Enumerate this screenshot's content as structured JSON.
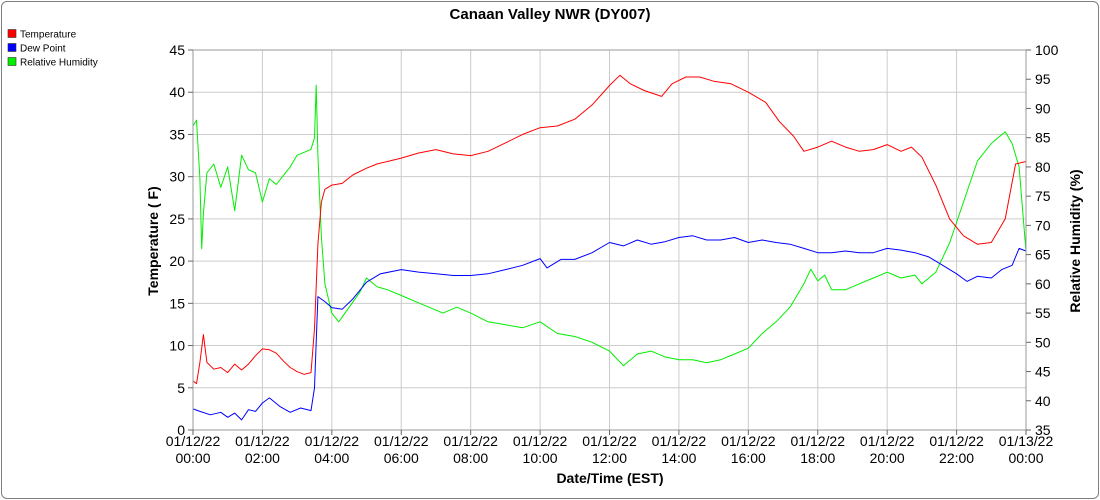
{
  "chart_data": {
    "type": "line",
    "title": "Canaan Valley NWR (DY007)",
    "xlabel": "Date/Time (EST)",
    "ylabel": "Temperature ( F)",
    "y2label": "Relative Humidity (%)",
    "ylim": [
      0,
      45
    ],
    "y2lim": [
      35,
      100
    ],
    "xlim_hours": [
      0,
      24
    ],
    "y_ticks": [
      "0",
      "5",
      "10",
      "15",
      "20",
      "25",
      "30",
      "35",
      "40",
      "45"
    ],
    "y2_ticks": [
      "35",
      "40",
      "45",
      "50",
      "55",
      "60",
      "65",
      "70",
      "75",
      "80",
      "85",
      "90",
      "95",
      "100"
    ],
    "x_ticks": [
      {
        "hour": 0,
        "date": "01/12/22",
        "time": "00:00"
      },
      {
        "hour": 2,
        "date": "01/12/22",
        "time": "02:00"
      },
      {
        "hour": 4,
        "date": "01/12/22",
        "time": "04:00"
      },
      {
        "hour": 6,
        "date": "01/12/22",
        "time": "06:00"
      },
      {
        "hour": 8,
        "date": "01/12/22",
        "time": "08:00"
      },
      {
        "hour": 10,
        "date": "01/12/22",
        "time": "10:00"
      },
      {
        "hour": 12,
        "date": "01/12/22",
        "time": "12:00"
      },
      {
        "hour": 14,
        "date": "01/12/22",
        "time": "14:00"
      },
      {
        "hour": 16,
        "date": "01/12/22",
        "time": "16:00"
      },
      {
        "hour": 18,
        "date": "01/12/22",
        "time": "18:00"
      },
      {
        "hour": 20,
        "date": "01/12/22",
        "time": "20:00"
      },
      {
        "hour": 22,
        "date": "01/12/22",
        "time": "22:00"
      },
      {
        "hour": 24,
        "date": "01/13/22",
        "time": "00:00"
      }
    ],
    "grid": true,
    "legend_position": "top-left",
    "series": [
      {
        "name": "Temperature",
        "color": "#ff0000",
        "axis": "left",
        "points": [
          [
            0,
            5.8
          ],
          [
            0.1,
            5.5
          ],
          [
            0.2,
            8
          ],
          [
            0.3,
            11.3
          ],
          [
            0.4,
            8
          ],
          [
            0.6,
            7.2
          ],
          [
            0.8,
            7.4
          ],
          [
            1.0,
            6.8
          ],
          [
            1.2,
            7.8
          ],
          [
            1.4,
            7.1
          ],
          [
            1.6,
            7.8
          ],
          [
            1.8,
            8.8
          ],
          [
            2.0,
            9.6
          ],
          [
            2.2,
            9.5
          ],
          [
            2.4,
            9.1
          ],
          [
            2.6,
            8.2
          ],
          [
            2.8,
            7.4
          ],
          [
            3.0,
            6.9
          ],
          [
            3.2,
            6.6
          ],
          [
            3.4,
            6.8
          ],
          [
            3.5,
            12
          ],
          [
            3.6,
            22
          ],
          [
            3.7,
            27
          ],
          [
            3.8,
            28.5
          ],
          [
            4.0,
            29
          ],
          [
            4.3,
            29.2
          ],
          [
            4.6,
            30.2
          ],
          [
            5.0,
            31
          ],
          [
            5.3,
            31.5
          ],
          [
            5.6,
            31.8
          ],
          [
            6.0,
            32.2
          ],
          [
            6.5,
            32.8
          ],
          [
            7.0,
            33.2
          ],
          [
            7.5,
            32.7
          ],
          [
            8.0,
            32.5
          ],
          [
            8.5,
            33
          ],
          [
            9.0,
            34
          ],
          [
            9.5,
            35
          ],
          [
            10.0,
            35.8
          ],
          [
            10.5,
            36
          ],
          [
            11.0,
            36.8
          ],
          [
            11.5,
            38.5
          ],
          [
            12.0,
            40.8
          ],
          [
            12.3,
            42
          ],
          [
            12.6,
            41
          ],
          [
            13.0,
            40.2
          ],
          [
            13.5,
            39.5
          ],
          [
            13.8,
            41
          ],
          [
            14.2,
            41.8
          ],
          [
            14.6,
            41.8
          ],
          [
            15.0,
            41.3
          ],
          [
            15.5,
            41
          ],
          [
            16.0,
            40
          ],
          [
            16.5,
            38.8
          ],
          [
            16.9,
            36.5
          ],
          [
            17.3,
            34.8
          ],
          [
            17.6,
            33
          ],
          [
            18.0,
            33.5
          ],
          [
            18.4,
            34.2
          ],
          [
            18.8,
            33.5
          ],
          [
            19.2,
            33
          ],
          [
            19.6,
            33.2
          ],
          [
            20.0,
            33.8
          ],
          [
            20.4,
            33
          ],
          [
            20.7,
            33.5
          ],
          [
            21.0,
            32.3
          ],
          [
            21.4,
            29
          ],
          [
            21.8,
            25
          ],
          [
            22.2,
            23
          ],
          [
            22.6,
            22
          ],
          [
            23.0,
            22.2
          ],
          [
            23.4,
            25
          ],
          [
            23.7,
            31.5
          ],
          [
            24.0,
            31.8
          ]
        ]
      },
      {
        "name": "Dew Point",
        "color": "#0000ff",
        "axis": "left",
        "points": [
          [
            0,
            2.5
          ],
          [
            0.2,
            2.2
          ],
          [
            0.5,
            1.8
          ],
          [
            0.8,
            2.1
          ],
          [
            1.0,
            1.5
          ],
          [
            1.2,
            2
          ],
          [
            1.4,
            1.2
          ],
          [
            1.6,
            2.4
          ],
          [
            1.8,
            2.2
          ],
          [
            2.0,
            3.2
          ],
          [
            2.2,
            3.8
          ],
          [
            2.5,
            2.8
          ],
          [
            2.8,
            2.1
          ],
          [
            3.1,
            2.6
          ],
          [
            3.4,
            2.3
          ],
          [
            3.5,
            5
          ],
          [
            3.6,
            15.8
          ],
          [
            3.8,
            15.2
          ],
          [
            4.0,
            14.5
          ],
          [
            4.3,
            14.3
          ],
          [
            4.6,
            15.5
          ],
          [
            5.0,
            17.5
          ],
          [
            5.4,
            18.5
          ],
          [
            6.0,
            19
          ],
          [
            6.5,
            18.7
          ],
          [
            7.0,
            18.5
          ],
          [
            7.5,
            18.3
          ],
          [
            8.0,
            18.3
          ],
          [
            8.5,
            18.5
          ],
          [
            9.0,
            19
          ],
          [
            9.5,
            19.5
          ],
          [
            10.0,
            20.3
          ],
          [
            10.2,
            19.2
          ],
          [
            10.6,
            20.2
          ],
          [
            11.0,
            20.2
          ],
          [
            11.5,
            21
          ],
          [
            12.0,
            22.2
          ],
          [
            12.4,
            21.8
          ],
          [
            12.8,
            22.5
          ],
          [
            13.2,
            22
          ],
          [
            13.6,
            22.3
          ],
          [
            14.0,
            22.8
          ],
          [
            14.4,
            23
          ],
          [
            14.8,
            22.5
          ],
          [
            15.2,
            22.5
          ],
          [
            15.6,
            22.8
          ],
          [
            16.0,
            22.2
          ],
          [
            16.4,
            22.5
          ],
          [
            16.8,
            22.2
          ],
          [
            17.2,
            22
          ],
          [
            17.6,
            21.5
          ],
          [
            18.0,
            21
          ],
          [
            18.4,
            21
          ],
          [
            18.8,
            21.2
          ],
          [
            19.2,
            21
          ],
          [
            19.6,
            21
          ],
          [
            20.0,
            21.5
          ],
          [
            20.4,
            21.3
          ],
          [
            20.8,
            21
          ],
          [
            21.2,
            20.5
          ],
          [
            21.6,
            19.5
          ],
          [
            22.0,
            18.5
          ],
          [
            22.3,
            17.6
          ],
          [
            22.6,
            18.2
          ],
          [
            23.0,
            18
          ],
          [
            23.3,
            19
          ],
          [
            23.6,
            19.5
          ],
          [
            23.8,
            21.5
          ],
          [
            24.0,
            21.2
          ]
        ]
      },
      {
        "name": "Relative Humidity",
        "color": "#00ee00",
        "axis": "right",
        "points": [
          [
            0,
            87
          ],
          [
            0.1,
            88
          ],
          [
            0.2,
            78
          ],
          [
            0.25,
            66
          ],
          [
            0.3,
            72
          ],
          [
            0.4,
            79
          ],
          [
            0.6,
            80.5
          ],
          [
            0.8,
            76.5
          ],
          [
            1.0,
            80
          ],
          [
            1.2,
            72.5
          ],
          [
            1.4,
            82
          ],
          [
            1.6,
            79.5
          ],
          [
            1.8,
            79
          ],
          [
            2.0,
            74
          ],
          [
            2.2,
            78
          ],
          [
            2.4,
            77
          ],
          [
            2.6,
            78.5
          ],
          [
            2.8,
            80
          ],
          [
            3.0,
            82
          ],
          [
            3.2,
            82.5
          ],
          [
            3.4,
            83
          ],
          [
            3.5,
            85
          ],
          [
            3.55,
            94
          ],
          [
            3.6,
            82
          ],
          [
            3.7,
            68
          ],
          [
            3.8,
            60
          ],
          [
            4.0,
            55
          ],
          [
            4.2,
            53.5
          ],
          [
            4.5,
            56
          ],
          [
            4.8,
            58.5
          ],
          [
            5.0,
            61
          ],
          [
            5.3,
            59.5
          ],
          [
            5.6,
            59
          ],
          [
            6.0,
            58
          ],
          [
            6.4,
            57
          ],
          [
            6.8,
            56
          ],
          [
            7.2,
            55
          ],
          [
            7.6,
            56
          ],
          [
            8.0,
            55
          ],
          [
            8.5,
            53.5
          ],
          [
            9.0,
            53
          ],
          [
            9.5,
            52.5
          ],
          [
            10.0,
            53.5
          ],
          [
            10.5,
            51.5
          ],
          [
            11.0,
            51
          ],
          [
            11.5,
            50
          ],
          [
            12.0,
            48.5
          ],
          [
            12.4,
            46
          ],
          [
            12.8,
            48
          ],
          [
            13.2,
            48.5
          ],
          [
            13.6,
            47.5
          ],
          [
            14.0,
            47
          ],
          [
            14.4,
            47
          ],
          [
            14.8,
            46.5
          ],
          [
            15.2,
            47
          ],
          [
            15.6,
            48
          ],
          [
            16.0,
            49
          ],
          [
            16.4,
            51.5
          ],
          [
            16.8,
            53.5
          ],
          [
            17.2,
            56
          ],
          [
            17.6,
            60
          ],
          [
            17.8,
            62.5
          ],
          [
            18.0,
            60.5
          ],
          [
            18.2,
            61.5
          ],
          [
            18.4,
            59
          ],
          [
            18.8,
            59
          ],
          [
            19.2,
            60
          ],
          [
            19.6,
            61
          ],
          [
            20.0,
            62
          ],
          [
            20.4,
            61
          ],
          [
            20.8,
            61.5
          ],
          [
            21.0,
            60
          ],
          [
            21.4,
            62
          ],
          [
            21.8,
            67
          ],
          [
            22.2,
            74
          ],
          [
            22.6,
            81
          ],
          [
            23.0,
            84
          ],
          [
            23.4,
            86
          ],
          [
            23.6,
            84
          ],
          [
            23.8,
            80
          ],
          [
            24.0,
            65.5
          ]
        ]
      }
    ]
  }
}
